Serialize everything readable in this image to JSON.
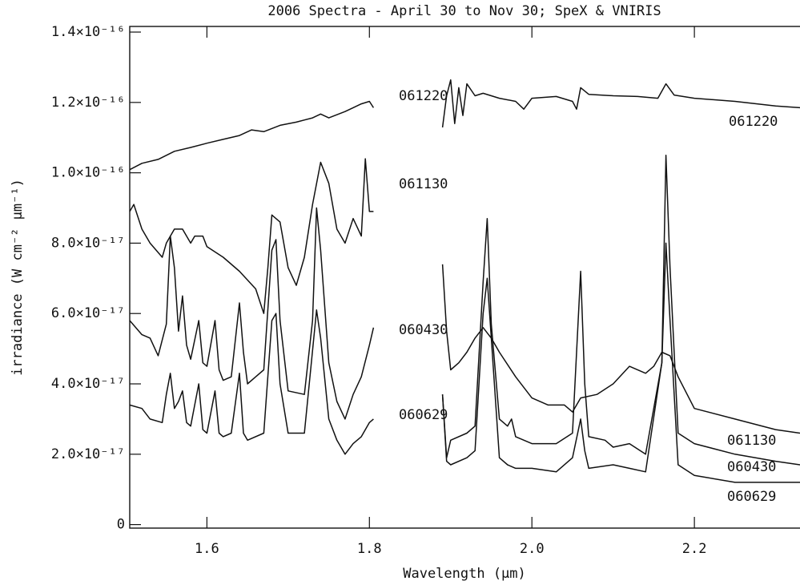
{
  "chart_data": {
    "type": "line",
    "title": "2006 Spectra - April 30 to Nov 30; SpeX & VNIRIS",
    "xlabel": "Wavelength (μm)",
    "ylabel": "irradiance (W cm⁻² μm⁻¹)",
    "xlim": [
      1.505,
      2.329
    ],
    "ylim": [
      -1e-18,
      1.416e-16
    ],
    "xticks": [
      1.6,
      1.8,
      {
        "value": 2,
        "label": "2.0"
      },
      2.2
    ],
    "yticks": [
      0,
      {
        "value": 2e-17,
        "label": "2.0×10⁻¹⁷"
      },
      {
        "value": 4e-17,
        "label": "4.0×10⁻¹⁷"
      },
      {
        "value": 6e-17,
        "label": "6.0×10⁻¹⁷"
      },
      {
        "value": 8e-17,
        "label": "8.0×10⁻¹⁷"
      },
      {
        "value": 1e-16,
        "label": "1.0×10⁻¹⁶"
      },
      {
        "value": 1.2e-16,
        "label": "1.2×10⁻¹⁶"
      },
      {
        "value": 1.4e-16,
        "label": "1.4×10⁻¹⁶"
      }
    ],
    "series": [
      {
        "name": "061220",
        "color": "#111111",
        "x": [
          1.505,
          1.52,
          1.54,
          1.56,
          1.58,
          1.6,
          1.62,
          1.64,
          1.655,
          1.67,
          1.69,
          1.71,
          1.73,
          1.74,
          1.75,
          1.77,
          1.78,
          1.79,
          1.8,
          1.805,
          null,
          1.89,
          1.895,
          1.9,
          1.905,
          1.91,
          1.915,
          1.92,
          1.93,
          1.94,
          1.96,
          1.98,
          1.99,
          2.0,
          2.03,
          2.05,
          2.055,
          2.06,
          2.07,
          2.1,
          2.13,
          2.155,
          2.165,
          2.175,
          2.2,
          2.25,
          2.3,
          2.33
        ],
        "values": [
          1.009e-16,
          1.027e-16,
          1.038e-16,
          1.061e-16,
          1.072e-16,
          1.084e-16,
          1.095e-16,
          1.106e-16,
          1.122e-16,
          1.117e-16,
          1.135e-16,
          1.144e-16,
          1.156e-16,
          1.167e-16,
          1.156e-16,
          1.174e-16,
          1.185e-16,
          1.196e-16,
          1.203e-16,
          1.185e-16,
          null,
          1.129e-16,
          1.219e-16,
          1.264e-16,
          1.14e-16,
          1.242e-16,
          1.163e-16,
          1.253e-16,
          1.219e-16,
          1.226e-16,
          1.212e-16,
          1.203e-16,
          1.181e-16,
          1.212e-16,
          1.217e-16,
          1.203e-16,
          1.181e-16,
          1.242e-16,
          1.223e-16,
          1.219e-16,
          1.217e-16,
          1.212e-16,
          1.253e-16,
          1.221e-16,
          1.212e-16,
          1.203e-16,
          1.19e-16,
          1.185e-16
        ]
      },
      {
        "name": "061130",
        "color": "#111111",
        "x": [
          1.505,
          1.51,
          1.52,
          1.53,
          1.545,
          1.55,
          1.56,
          1.57,
          1.58,
          1.585,
          1.595,
          1.6,
          1.62,
          1.64,
          1.66,
          1.67,
          1.675,
          1.68,
          1.69,
          1.7,
          1.71,
          1.72,
          1.73,
          1.74,
          1.75,
          1.76,
          1.77,
          1.78,
          1.79,
          1.795,
          1.8,
          1.805,
          null,
          1.89,
          1.895,
          1.9,
          1.91,
          1.92,
          1.93,
          1.94,
          1.95,
          1.96,
          1.98,
          2.0,
          2.02,
          2.04,
          2.05,
          2.06,
          2.08,
          2.1,
          2.12,
          2.14,
          2.15,
          2.16,
          2.17,
          2.18,
          2.2,
          2.25,
          2.3,
          2.33
        ],
        "values": [
          8.9e-17,
          9.1e-17,
          8.4e-17,
          8e-17,
          7.6e-17,
          8e-17,
          8.4e-17,
          8.4e-17,
          8e-17,
          8.2e-17,
          8.2e-17,
          7.9e-17,
          7.6e-17,
          7.2e-17,
          6.7e-17,
          6e-17,
          7.3e-17,
          8.8e-17,
          8.6e-17,
          7.3e-17,
          6.8e-17,
          7.6e-17,
          9.1e-17,
          1.03e-16,
          9.7e-17,
          8.4e-17,
          8e-17,
          8.7e-17,
          8.2e-17,
          1.04e-16,
          8.9e-17,
          8.9e-17,
          null,
          7.4e-17,
          5.5e-17,
          4.4e-17,
          4.6e-17,
          4.9e-17,
          5.3e-17,
          5.6e-17,
          5.3e-17,
          4.9e-17,
          4.2e-17,
          3.6e-17,
          3.4e-17,
          3.4e-17,
          3.2e-17,
          3.6e-17,
          3.7e-17,
          4e-17,
          4.5e-17,
          4.3e-17,
          4.5e-17,
          4.9e-17,
          4.8e-17,
          4.2e-17,
          3.3e-17,
          3e-17,
          2.7e-17,
          2.6e-17
        ]
      },
      {
        "name": "060430",
        "color": "#111111",
        "x": [
          1.505,
          1.52,
          1.53,
          1.54,
          1.55,
          1.555,
          1.56,
          1.565,
          1.57,
          1.575,
          1.58,
          1.59,
          1.595,
          1.6,
          1.61,
          1.615,
          1.62,
          1.63,
          1.64,
          1.645,
          1.65,
          1.66,
          1.67,
          1.68,
          1.685,
          1.69,
          1.7,
          1.72,
          1.73,
          1.735,
          1.74,
          1.75,
          1.76,
          1.77,
          1.78,
          1.79,
          1.8,
          1.805,
          null,
          1.89,
          1.895,
          1.9,
          1.92,
          1.93,
          1.94,
          1.945,
          1.95,
          1.96,
          1.97,
          1.975,
          1.98,
          2.0,
          2.03,
          2.05,
          2.06,
          2.065,
          2.07,
          2.09,
          2.1,
          2.12,
          2.14,
          2.16,
          2.165,
          2.17,
          2.18,
          2.2,
          2.25,
          2.3,
          2.33
        ],
        "values": [
          5.8e-17,
          5.4e-17,
          5.3e-17,
          4.8e-17,
          5.7e-17,
          8.2e-17,
          7.3e-17,
          5.5e-17,
          6.5e-17,
          5.1e-17,
          4.7e-17,
          5.8e-17,
          4.6e-17,
          4.5e-17,
          5.8e-17,
          4.4e-17,
          4.1e-17,
          4.2e-17,
          6.3e-17,
          4.9e-17,
          4e-17,
          4.2e-17,
          4.4e-17,
          7.8e-17,
          8.1e-17,
          5.8e-17,
          3.8e-17,
          3.7e-17,
          5.8e-17,
          9e-17,
          7.8e-17,
          4.6e-17,
          3.5e-17,
          3e-17,
          3.7e-17,
          4.2e-17,
          5.1e-17,
          5.6e-17,
          null,
          3.7e-17,
          1.9e-17,
          2.4e-17,
          2.6e-17,
          2.8e-17,
          6.9e-17,
          8.7e-17,
          5.7e-17,
          3e-17,
          2.8e-17,
          3e-17,
          2.5e-17,
          2.3e-17,
          2.3e-17,
          2.6e-17,
          7.2e-17,
          4e-17,
          2.5e-17,
          2.4e-17,
          2.2e-17,
          2.3e-17,
          2e-17,
          4.6e-17,
          1.05e-16,
          7.3e-17,
          2.6e-17,
          2.3e-17,
          2e-17,
          1.8e-17,
          1.7e-17
        ]
      },
      {
        "name": "060629",
        "color": "#111111",
        "x": [
          1.505,
          1.52,
          1.53,
          1.545,
          1.55,
          1.555,
          1.56,
          1.565,
          1.57,
          1.575,
          1.58,
          1.59,
          1.595,
          1.6,
          1.61,
          1.615,
          1.62,
          1.63,
          1.64,
          1.645,
          1.65,
          1.67,
          1.68,
          1.685,
          1.69,
          1.7,
          1.72,
          1.735,
          1.74,
          1.75,
          1.76,
          1.77,
          1.78,
          1.79,
          1.8,
          1.805,
          null,
          1.89,
          1.895,
          1.9,
          1.92,
          1.93,
          1.94,
          1.945,
          1.95,
          1.96,
          1.97,
          1.98,
          2.0,
          2.03,
          2.05,
          2.06,
          2.065,
          2.07,
          2.1,
          2.12,
          2.14,
          2.16,
          2.165,
          2.17,
          2.18,
          2.2,
          2.25,
          2.3,
          2.33
        ],
        "values": [
          3.4e-17,
          3.3e-17,
          3e-17,
          2.9e-17,
          3.7e-17,
          4.3e-17,
          3.3e-17,
          3.5e-17,
          3.8e-17,
          2.9e-17,
          2.8e-17,
          4e-17,
          2.7e-17,
          2.6e-17,
          3.8e-17,
          2.6e-17,
          2.5e-17,
          2.6e-17,
          4.3e-17,
          2.6e-17,
          2.4e-17,
          2.6e-17,
          5.8e-17,
          6e-17,
          4e-17,
          2.6e-17,
          2.6e-17,
          6.1e-17,
          5.3e-17,
          3e-17,
          2.4e-17,
          2e-17,
          2.3e-17,
          2.5e-17,
          2.9e-17,
          3e-17,
          null,
          3.7e-17,
          1.8e-17,
          1.7e-17,
          1.9e-17,
          2.1e-17,
          6e-17,
          7e-17,
          5.3e-17,
          1.9e-17,
          1.7e-17,
          1.6e-17,
          1.6e-17,
          1.5e-17,
          1.9e-17,
          3e-17,
          2.1e-17,
          1.6e-17,
          1.7e-17,
          1.6e-17,
          1.5e-17,
          4.6e-17,
          8e-17,
          5.8e-17,
          1.7e-17,
          1.4e-17,
          1.2e-17,
          1.2e-17,
          1.2e-17
        ]
      }
    ]
  }
}
